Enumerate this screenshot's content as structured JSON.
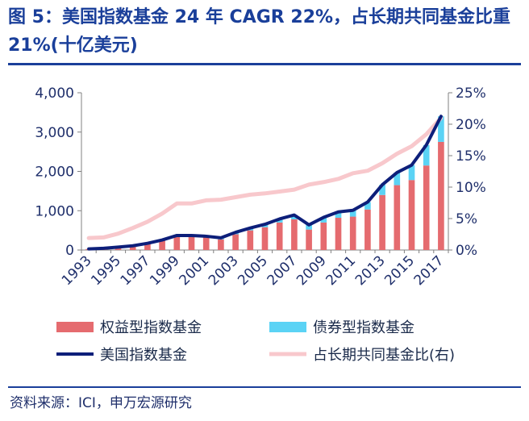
{
  "figure": {
    "title": "图 5：美国指数基金 24 年 CAGR 22%，占长期共同基金比重 21%(十亿美元)",
    "source": "资料来源：ICI，申万宏源研究"
  },
  "colors": {
    "equity": "#e56b6f",
    "bond": "#5bd3f5",
    "total_line": "#0d1f7a",
    "share_line": "#f8c8cc",
    "text": "#1f2f6b",
    "title": "#1a3f9a"
  },
  "chart_data": {
    "type": "bar",
    "stacked": true,
    "title": "美国指数基金 24 年 CAGR 22%，占长期共同基金比重 21%(十亿美元)",
    "categories": [
      "1993",
      "1994",
      "1995",
      "1996",
      "1997",
      "1998",
      "1999",
      "2000",
      "2001",
      "2002",
      "2003",
      "2004",
      "2005",
      "2006",
      "2007",
      "2008",
      "2009",
      "2010",
      "2011",
      "2012",
      "2013",
      "2014",
      "2015",
      "2016",
      "2017"
    ],
    "x_tick_labels": [
      "1993",
      "1995",
      "1997",
      "1999",
      "2001",
      "2003",
      "2005",
      "2007",
      "2009",
      "2011",
      "2013",
      "2015",
      "2017"
    ],
    "y_left": {
      "ylim": [
        0,
        4000
      ],
      "ticks": [
        "0",
        "1,000",
        "2,000",
        "3,000",
        "4,000"
      ],
      "tick_values": [
        0,
        1000,
        2000,
        3000,
        4000
      ]
    },
    "y_right": {
      "ylim": [
        0,
        25
      ],
      "ticks": [
        "0%",
        "5%",
        "10%",
        "15%",
        "20%",
        "25%"
      ],
      "tick_values": [
        0,
        5,
        10,
        15,
        20,
        25
      ]
    },
    "series": [
      {
        "name": "权益型指数基金",
        "kind": "bar",
        "axis": "left",
        "values": [
          25,
          40,
          70,
          100,
          160,
          240,
          350,
          350,
          320,
          270,
          400,
          500,
          580,
          700,
          780,
          520,
          700,
          820,
          850,
          1030,
          1400,
          1650,
          1780,
          2150,
          2750
        ]
      },
      {
        "name": "债券型指数基金",
        "kind": "bar",
        "axis": "left",
        "values": [
          2,
          3,
          5,
          8,
          10,
          15,
          20,
          20,
          30,
          40,
          50,
          60,
          75,
          90,
          110,
          120,
          130,
          150,
          160,
          190,
          260,
          320,
          380,
          520,
          650
        ]
      },
      {
        "name": "美国指数基金",
        "kind": "line",
        "axis": "left",
        "values": [
          27,
          43,
          75,
          108,
          170,
          255,
          370,
          370,
          350,
          310,
          450,
          560,
          655,
          790,
          890,
          640,
          830,
          970,
          1010,
          1220,
          1660,
          1970,
          2160,
          2670,
          3400
        ]
      },
      {
        "name": "占长期共同基金比(右)",
        "kind": "line",
        "axis": "right",
        "values": [
          1.9,
          2.0,
          2.6,
          3.5,
          4.5,
          5.8,
          7.4,
          7.4,
          7.9,
          8.0,
          8.4,
          8.8,
          9.0,
          9.3,
          9.6,
          10.4,
          10.8,
          11.3,
          12.2,
          12.6,
          13.8,
          15.3,
          16.5,
          18.4,
          21.0
        ]
      }
    ],
    "legend": [
      {
        "label": "权益型指数基金",
        "swatch": "bar",
        "series": 0
      },
      {
        "label": "债券型指数基金",
        "swatch": "bar",
        "series": 1
      },
      {
        "label": "美国指数基金",
        "swatch": "line",
        "series": 2
      },
      {
        "label": "占长期共同基金比(右)",
        "swatch": "line",
        "series": 3
      }
    ],
    "legend_position": "bottom",
    "grid": false
  }
}
